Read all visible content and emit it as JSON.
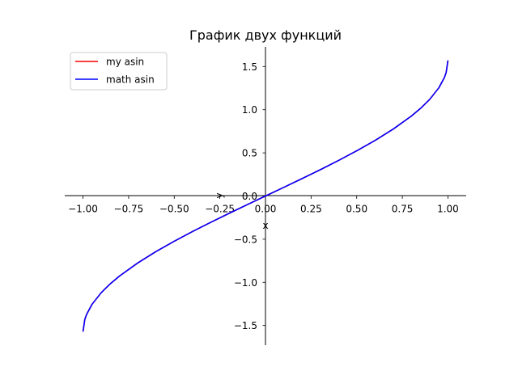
{
  "chart_data": {
    "type": "line",
    "title": "График двух функций",
    "xlabel": "x",
    "ylabel": "y",
    "xlim": [
      -1.1,
      1.1
    ],
    "ylim": [
      -1.728,
      1.728
    ],
    "xticks": [
      -1.0,
      -0.75,
      -0.5,
      -0.25,
      0.0,
      0.25,
      0.5,
      0.75,
      1.0
    ],
    "xtick_labels": [
      "−1.00",
      "−0.75",
      "−0.50",
      "−0.25",
      "0.00",
      "0.25",
      "0.50",
      "0.75",
      "1.00"
    ],
    "yticks": [
      -1.5,
      -1.0,
      -0.5,
      0.0,
      0.5,
      1.0,
      1.5
    ],
    "ytick_labels": [
      "−1.5",
      "−1.0",
      "−0.5",
      "0.0",
      "0.5",
      "1.0",
      "1.5"
    ],
    "legend": "top-left",
    "grid": false,
    "spines": "centered",
    "series": [
      {
        "name": "my asin",
        "color": "#ff0000",
        "x": [
          -1.0,
          -0.99,
          -0.98,
          -0.95,
          -0.9,
          -0.85,
          -0.8,
          -0.7,
          -0.6,
          -0.5,
          -0.4,
          -0.3,
          -0.2,
          -0.1,
          0.0,
          0.1,
          0.2,
          0.3,
          0.4,
          0.5,
          0.6,
          0.7,
          0.8,
          0.85,
          0.9,
          0.95,
          0.98,
          0.99,
          1.0
        ],
        "y": [
          -1.5708,
          -1.4293,
          -1.3705,
          -1.2532,
          -1.1198,
          -1.016,
          -0.9273,
          -0.7754,
          -0.6435,
          -0.5236,
          -0.4115,
          -0.3047,
          -0.2014,
          -0.1002,
          0.0,
          0.1002,
          0.2014,
          0.3047,
          0.4115,
          0.5236,
          0.6435,
          0.7754,
          0.9273,
          1.016,
          1.1198,
          1.2532,
          1.3705,
          1.4293,
          1.5708
        ]
      },
      {
        "name": "math asin",
        "color": "#0000ff",
        "x": [
          -1.0,
          -0.99,
          -0.98,
          -0.95,
          -0.9,
          -0.85,
          -0.8,
          -0.7,
          -0.6,
          -0.5,
          -0.4,
          -0.3,
          -0.2,
          -0.1,
          0.0,
          0.1,
          0.2,
          0.3,
          0.4,
          0.5,
          0.6,
          0.7,
          0.8,
          0.85,
          0.9,
          0.95,
          0.98,
          0.99,
          1.0
        ],
        "y": [
          -1.5708,
          -1.4293,
          -1.3705,
          -1.2532,
          -1.1198,
          -1.016,
          -0.9273,
          -0.7754,
          -0.6435,
          -0.5236,
          -0.4115,
          -0.3047,
          -0.2014,
          -0.1002,
          0.0,
          0.1002,
          0.2014,
          0.3047,
          0.4115,
          0.5236,
          0.6435,
          0.7754,
          0.9273,
          1.016,
          1.1198,
          1.2532,
          1.3705,
          1.4293,
          1.5708
        ]
      }
    ]
  }
}
